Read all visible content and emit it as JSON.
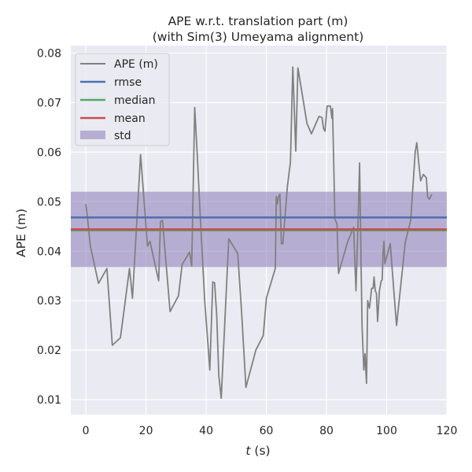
{
  "chart_data": {
    "type": "line",
    "title": [
      "APE w.r.t. translation part (m)",
      "(with Sim(3) Umeyama alignment)"
    ],
    "xlabel": "t (s)",
    "xlabel_var": "t",
    "xlabel_unit": " (s)",
    "ylabel": "APE (m)",
    "xlim": [
      -5,
      120
    ],
    "ylim": [
      0.007,
      0.0815
    ],
    "x_ticks": [
      0,
      20,
      40,
      60,
      80,
      100,
      120
    ],
    "y_ticks": [
      0.01,
      0.02,
      0.03,
      0.04,
      0.05,
      0.06,
      0.07,
      0.08
    ],
    "x_tick_labels": [
      "0",
      "20",
      "40",
      "60",
      "80",
      "100",
      "120"
    ],
    "y_tick_labels": [
      "0.01",
      "0.02",
      "0.03",
      "0.04",
      "0.05",
      "0.06",
      "0.07",
      "0.08"
    ],
    "grid": true,
    "legend_position": "top-left",
    "colors": {
      "background": "#EAEAF2",
      "grid": "#FFFFFF",
      "ape": "#808080",
      "rmse": "#4C72B0",
      "median": "#55A868",
      "mean": "#C44E52",
      "std": "#8172B2"
    },
    "stats": {
      "rmse": 0.0468,
      "median": 0.0442,
      "mean": 0.0444,
      "std": 0.0076
    },
    "legend": [
      "APE (m)",
      "rmse",
      "median",
      "mean",
      "std"
    ],
    "series": [
      {
        "name": "APE (m)",
        "points": [
          [
            0,
            0.0495
          ],
          [
            0.5,
            0.047
          ],
          [
            1.5,
            0.041
          ],
          [
            4.2,
            0.0335
          ],
          [
            7.0,
            0.0365
          ],
          [
            8.8,
            0.021
          ],
          [
            11.5,
            0.0225
          ],
          [
            14.5,
            0.0365
          ],
          [
            15.5,
            0.0305
          ],
          [
            18.2,
            0.0595
          ],
          [
            20.5,
            0.041
          ],
          [
            21.3,
            0.042
          ],
          [
            24.2,
            0.034
          ],
          [
            24.8,
            0.046
          ],
          [
            25.5,
            0.0462
          ],
          [
            28.0,
            0.0278
          ],
          [
            30.8,
            0.031
          ],
          [
            32.0,
            0.0373
          ],
          [
            34.5,
            0.0398
          ],
          [
            35.2,
            0.037
          ],
          [
            36.2,
            0.069
          ],
          [
            37.0,
            0.06
          ],
          [
            38.0,
            0.0475
          ],
          [
            39.5,
            0.03
          ],
          [
            40.5,
            0.022
          ],
          [
            41.2,
            0.016
          ],
          [
            42.2,
            0.0338
          ],
          [
            42.8,
            0.0336
          ],
          [
            43.5,
            0.027
          ],
          [
            44.2,
            0.015
          ],
          [
            45.0,
            0.0103
          ],
          [
            47.5,
            0.0425
          ],
          [
            50.5,
            0.0395
          ],
          [
            51.8,
            0.0275
          ],
          [
            53.2,
            0.0125
          ],
          [
            56.5,
            0.02
          ],
          [
            59.0,
            0.023
          ],
          [
            60.0,
            0.0305
          ],
          [
            63.0,
            0.0365
          ],
          [
            63.3,
            0.051
          ],
          [
            63.7,
            0.0495
          ],
          [
            64.0,
            0.051
          ],
          [
            64.5,
            0.0515
          ],
          [
            65.0,
            0.0415
          ],
          [
            65.5,
            0.0415
          ],
          [
            67.0,
            0.053
          ],
          [
            68.0,
            0.058
          ],
          [
            68.8,
            0.0772
          ],
          [
            69.8,
            0.0602
          ],
          [
            70.5,
            0.077
          ],
          [
            73.5,
            0.0658
          ],
          [
            75.0,
            0.0637
          ],
          [
            77.5,
            0.0672
          ],
          [
            78.5,
            0.067
          ],
          [
            79.0,
            0.0648
          ],
          [
            79.5,
            0.0642
          ],
          [
            80.2,
            0.0693
          ],
          [
            81.3,
            0.0693
          ],
          [
            81.8,
            0.0668
          ],
          [
            82.0,
            0.0688
          ],
          [
            82.4,
            0.058
          ],
          [
            82.8,
            0.0465
          ],
          [
            83.5,
            0.0455
          ],
          [
            84.0,
            0.0355
          ],
          [
            87.0,
            0.0418
          ],
          [
            89.0,
            0.0448
          ],
          [
            89.8,
            0.032
          ],
          [
            90.6,
            0.0483
          ],
          [
            91.0,
            0.0578
          ],
          [
            91.8,
            0.025
          ],
          [
            92.4,
            0.016
          ],
          [
            92.8,
            0.0193
          ],
          [
            93.3,
            0.0133
          ],
          [
            93.7,
            0.03
          ],
          [
            94.3,
            0.0285
          ],
          [
            95.0,
            0.0325
          ],
          [
            95.5,
            0.0325
          ],
          [
            95.8,
            0.0348
          ],
          [
            96.2,
            0.032
          ],
          [
            96.6,
            0.0315
          ],
          [
            97.0,
            0.0258
          ],
          [
            97.6,
            0.032
          ],
          [
            98.2,
            0.034
          ],
          [
            98.5,
            0.0342
          ],
          [
            98.8,
            0.0395
          ],
          [
            99.1,
            0.042
          ],
          [
            99.4,
            0.0375
          ],
          [
            101.2,
            0.0415
          ],
          [
            102.5,
            0.031
          ],
          [
            103.3,
            0.025
          ],
          [
            106.2,
            0.0418
          ],
          [
            108.0,
            0.0462
          ],
          [
            109.5,
            0.06
          ],
          [
            110.0,
            0.0619
          ],
          [
            111.0,
            0.0558
          ],
          [
            111.3,
            0.0542
          ],
          [
            112.2,
            0.0555
          ],
          [
            113.2,
            0.0548
          ],
          [
            113.6,
            0.051
          ],
          [
            114.2,
            0.0505
          ],
          [
            115.0,
            0.0515
          ]
        ]
      }
    ]
  }
}
